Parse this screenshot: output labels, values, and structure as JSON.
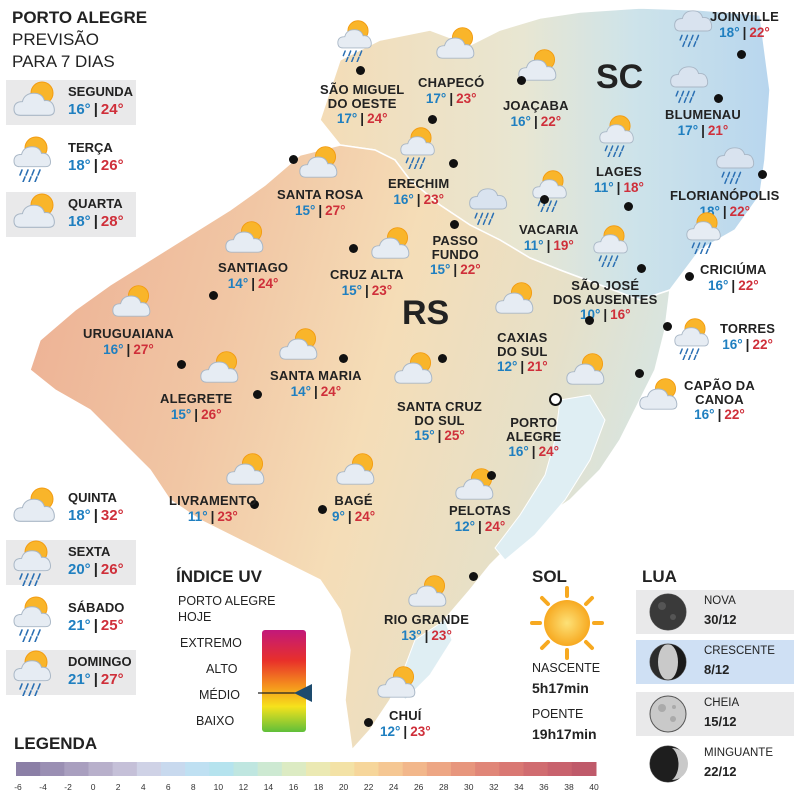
{
  "header": {
    "city": "PORTO ALEGRE",
    "line2": "PREVISÃO",
    "line3": "PARA 7 DIAS"
  },
  "forecast": [
    {
      "day": "SEGUNDA",
      "min": "16°",
      "max": "24°",
      "icon": "partly-cloudy-icon"
    },
    {
      "day": "TERÇA",
      "min": "18°",
      "max": "26°",
      "icon": "sun-cloud-rain-icon"
    },
    {
      "day": "QUARTA",
      "min": "18°",
      "max": "28°",
      "icon": "partly-cloudy-icon"
    },
    {
      "day": "QUINTA",
      "min": "18°",
      "max": "32°",
      "icon": "partly-cloudy-icon"
    },
    {
      "day": "SEXTA",
      "min": "20°",
      "max": "26°",
      "icon": "sun-cloud-rain-icon"
    },
    {
      "day": "SÁBADO",
      "min": "21°",
      "max": "25°",
      "icon": "sun-cloud-rain-icon"
    },
    {
      "day": "DOMINGO",
      "min": "21°",
      "max": "27°",
      "icon": "sun-cloud-rain-icon"
    }
  ],
  "states": {
    "sc": "SC",
    "rs": "RS"
  },
  "cities": {
    "joinville": {
      "l1": "JOINVILLE",
      "l2": "",
      "min": "18°",
      "max": "22°"
    },
    "sao_miguel": {
      "l1": "SÃO MIGUEL",
      "l2": "DO OESTE",
      "min": "17°",
      "max": "24°"
    },
    "chapeco": {
      "l1": "CHAPECÓ",
      "l2": "",
      "min": "17°",
      "max": "23°"
    },
    "joacaba": {
      "l1": "JOAÇABA",
      "l2": "",
      "min": "16°",
      "max": "22°"
    },
    "blumenau": {
      "l1": "BLUMENAU",
      "l2": "",
      "min": "17°",
      "max": "21°"
    },
    "lages": {
      "l1": "LAGES",
      "l2": "",
      "min": "11°",
      "max": "18°"
    },
    "florianopolis": {
      "l1": "FLORIANÓPOLIS",
      "l2": "",
      "min": "18°",
      "max": "22°"
    },
    "santa_rosa": {
      "l1": "SANTA ROSA",
      "l2": "",
      "min": "15°",
      "max": "27°"
    },
    "erechim": {
      "l1": "ERECHIM",
      "l2": "",
      "min": "16°",
      "max": "23°"
    },
    "vacaria": {
      "l1": "VACARIA",
      "l2": "",
      "min": "11°",
      "max": "19°"
    },
    "passo_fundo": {
      "l1": "PASSO",
      "l2": "FUNDO",
      "min": "15°",
      "max": "22°"
    },
    "santiago": {
      "l1": "SANTIAGO",
      "l2": "",
      "min": "14°",
      "max": "24°"
    },
    "cruz_alta": {
      "l1": "CRUZ ALTA",
      "l2": "",
      "min": "15°",
      "max": "23°"
    },
    "criciuma": {
      "l1": "CRICIÚMA",
      "l2": "",
      "min": "16°",
      "max": "22°"
    },
    "sao_jose": {
      "l1": "SÃO JOSÉ",
      "l2": "DOS AUSENTES",
      "min": "10°",
      "max": "16°"
    },
    "uruguaiana": {
      "l1": "URUGUAIANA",
      "l2": "",
      "min": "16°",
      "max": "27°"
    },
    "caxias": {
      "l1": "CAXIAS",
      "l2": "DO SUL",
      "min": "12°",
      "max": "21°"
    },
    "torres": {
      "l1": "TORRES",
      "l2": "",
      "min": "16°",
      "max": "22°"
    },
    "santa_maria": {
      "l1": "SANTA MARIA",
      "l2": "",
      "min": "14°",
      "max": "24°"
    },
    "alegrete": {
      "l1": "ALEGRETE",
      "l2": "",
      "min": "15°",
      "max": "26°"
    },
    "capao": {
      "l1": "CAPÃO DA",
      "l2": "CANOA",
      "min": "16°",
      "max": "22°"
    },
    "santa_cruz": {
      "l1": "SANTA CRUZ",
      "l2": "DO SUL",
      "min": "15°",
      "max": "25°"
    },
    "porto_alegre": {
      "l1": "PORTO",
      "l2": "ALEGRE",
      "min": "16°",
      "max": "24°"
    },
    "livramento": {
      "l1": "LIVRAMENTO",
      "l2": "",
      "min": "11°",
      "max": "23°"
    },
    "bage": {
      "l1": "BAGÉ",
      "l2": "",
      "min": "9°",
      "max": "24°"
    },
    "pelotas": {
      "l1": "PELOTAS",
      "l2": "",
      "min": "12°",
      "max": "24°"
    },
    "rio_grande": {
      "l1": "RIO GRANDE",
      "l2": "",
      "min": "13°",
      "max": "23°"
    },
    "chui": {
      "l1": "CHUÍ",
      "l2": "",
      "min": "12°",
      "max": "23°"
    }
  },
  "uv": {
    "title": "ÍNDICE UV",
    "sub1": "PORTO ALEGRE",
    "sub2": "HOJE",
    "levels": [
      "EXTREMO",
      "ALTO",
      "MÉDIO",
      "BAIXO"
    ],
    "current": "MÉDIO"
  },
  "sun": {
    "title": "SOL",
    "rise_label": "NASCENTE",
    "rise": "5h17min",
    "set_label": "POENTE",
    "set": "19h17min"
  },
  "moon": {
    "title": "LUA",
    "phases": [
      {
        "name": "NOVA",
        "date": "30/12"
      },
      {
        "name": "CRESCENTE",
        "date": "8/12",
        "current": true
      },
      {
        "name": "CHEIA",
        "date": "15/12"
      },
      {
        "name": "MINGUANTE",
        "date": "22/12"
      }
    ]
  },
  "legend": {
    "title": "LEGENDA",
    "ticks": [
      "-6",
      "-4",
      "-2",
      "0",
      "2",
      "4",
      "6",
      "8",
      "10",
      "12",
      "14",
      "16",
      "18",
      "20",
      "22",
      "24",
      "26",
      "28",
      "30",
      "32",
      "34",
      "36",
      "38",
      "40"
    ],
    "colors": [
      "#8b7fa6",
      "#9a8fb3",
      "#a99fbf",
      "#b8b0cb",
      "#c5c0d8",
      "#cfd2e6",
      "#c8d9ee",
      "#bfe0f2",
      "#b5e3ee",
      "#bfe6e0",
      "#cde9d2",
      "#dcebc3",
      "#ebe9b3",
      "#f3e2a6",
      "#f6d69b",
      "#f5c793",
      "#f2b78b",
      "#eda684",
      "#e7967d",
      "#e08678",
      "#d97873",
      "#d06c70",
      "#c8626d",
      "#bf5a6a"
    ]
  },
  "colors": {
    "min": "#1f7fc0",
    "max": "#cf2f3a"
  }
}
